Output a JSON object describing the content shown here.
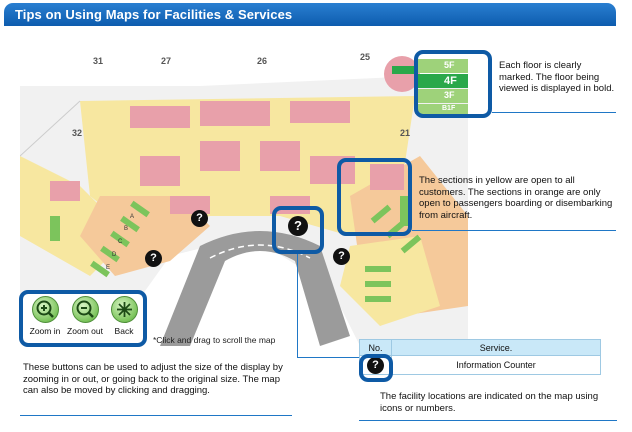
{
  "header": {
    "title": "Tips on Using Maps for Facilities & Services"
  },
  "map": {
    "gate_numbers": [
      "31",
      "27",
      "26",
      "25",
      "32",
      "21"
    ],
    "floors": [
      "5F",
      "4F",
      "3F",
      "B1F"
    ],
    "current_floor": "4F",
    "section_letters": [
      "A",
      "B",
      "C",
      "D",
      "E"
    ],
    "zone_colors": {
      "public": "#f7e7a0",
      "restricted": "#f5c99a",
      "building": "#e8a0aa",
      "walkway": "#e5e5e5"
    }
  },
  "notes": {
    "floors": "Each floor is clearly marked. The floor being viewed is displayed in bold.",
    "sections": "The sections in yellow are open to all customers. The sections in orange are only open to passengers boarding or disembarking from aircraft.",
    "buttons": "These buttons can be used to adjust the size of the display by zooming in or out, or going back to the original size. The map can also be moved by clicking and dragging.",
    "icons": "The facility locations are indicated on the map using icons or numbers."
  },
  "controls": {
    "zoom_in": "Zoom in",
    "zoom_out": "Zoom out",
    "back": "Back",
    "hint": "*Click and drag to scroll the map"
  },
  "icon_symbol": "?",
  "table": {
    "headers": [
      "No.",
      "Service."
    ],
    "rows": [
      {
        "icon": "information-icon",
        "service": "Information Counter"
      }
    ]
  }
}
